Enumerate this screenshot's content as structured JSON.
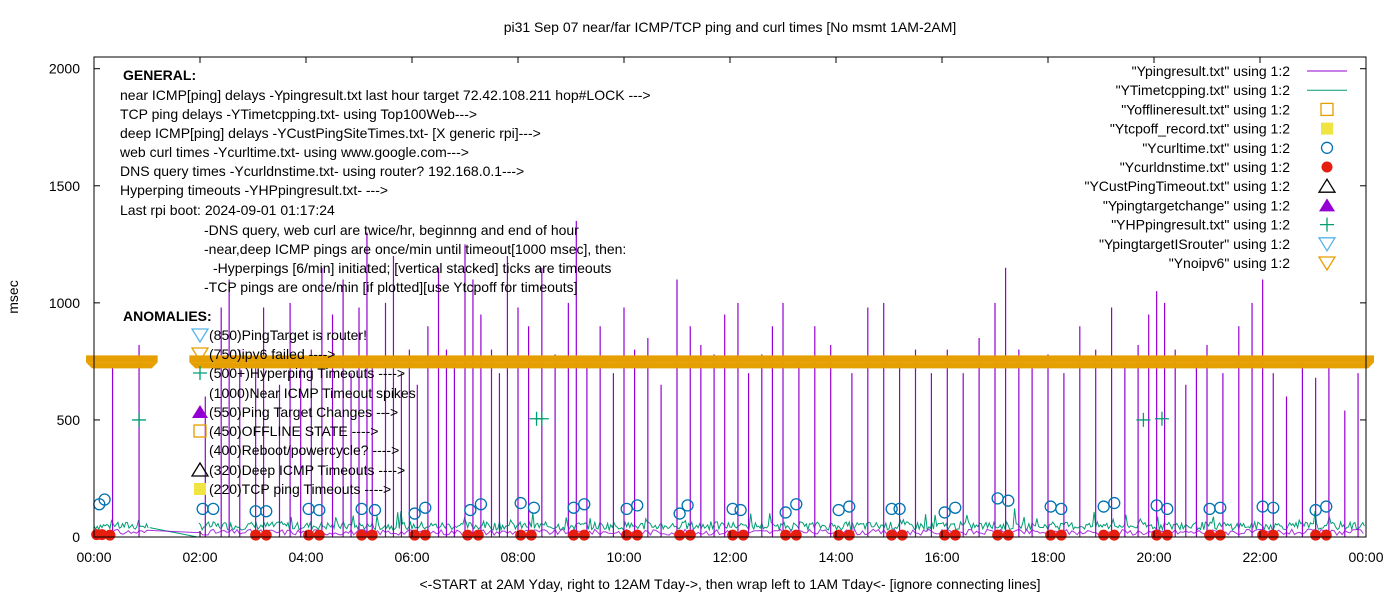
{
  "chart_data": {
    "type": "line",
    "title": "pi31 Sep 07  near/far ICMP/TCP ping and curl times [No msmt 1AM-2AM]",
    "xlabel": "<-START at 2AM Yday, right to 12AM Tday->, then wrap left to 1AM Tday<- [ignore connecting lines]",
    "ylabel": "msec",
    "xlim": [
      0,
      24
    ],
    "ylim": [
      0,
      2050
    ],
    "xticks": [
      "00:00",
      "02:00",
      "04:00",
      "06:00",
      "08:00",
      "10:00",
      "12:00",
      "14:00",
      "16:00",
      "18:00",
      "20:00",
      "22:00",
      "00:00"
    ],
    "yticks": [
      "0",
      "500",
      "1000",
      "1500",
      "2000"
    ],
    "grid": false,
    "legend_position": "top-right",
    "legend": [
      {
        "label": "\"Ypingresult.txt\" using 1:2",
        "marker": "line",
        "color": "#9400d3"
      },
      {
        "label": "\"YTimetcpping.txt\" using 1:2",
        "marker": "line",
        "color": "#009e73"
      },
      {
        "label": "\"Yofflineresult.txt\" using 1:2",
        "marker": "open-square",
        "color": "#e69f00"
      },
      {
        "label": "\"Ytcpoff_record.txt\" using 1:2",
        "marker": "filled-square",
        "color": "#f0e442"
      },
      {
        "label": "\"Ycurltime.txt\" using 1:2",
        "marker": "open-circle",
        "color": "#0072b2"
      },
      {
        "label": "\"Ycurldnstime.txt\" using 1:2",
        "marker": "filled-circle",
        "color": "#e51e10"
      },
      {
        "label": "\"YCustPingTimeout.txt\" using 1:2",
        "marker": "open-triangle",
        "color": "#000000"
      },
      {
        "label": "\"Ypingtargetchange\" using 1:2",
        "marker": "filled-triangle",
        "color": "#9400d3"
      },
      {
        "label": "\"YHPpingresult.txt\" using 1:2",
        "marker": "plus",
        "color": "#009e73"
      },
      {
        "label": "\"YpingtargetISrouter\" using 1:2",
        "marker": "open-down-triangle",
        "color": "#56b4e9"
      },
      {
        "label": "\"Ynoipv6\" using 1:2",
        "marker": "open-down-triangle",
        "color": "#e69f00"
      }
    ],
    "general_notes": [
      "GENERAL:",
      "near ICMP[ping] delays -Ypingresult.txt last hour target 72.42.108.211 hop#LOCK --->",
      "TCP ping delays -YTimetcpping.txt- using Top100Web--->",
      "deep ICMP[ping] delays -YCustPingSiteTimes.txt- [X generic rpi]--->",
      "web curl times -Ycurltime.txt- using www.google.com--->",
      "DNS query times -Ycurldnstime.txt- using router? 192.168.0.1--->",
      "Hyperping timeouts -YHPpingresult.txt- --->",
      "Last rpi boot: 2024-09-01 01:17:24",
      "-DNS query, web curl are twice/hr, beginnng and end of hour",
      "-near,deep ICMP pings are once/min until timeout[1000 msec], then:",
      "-Hyperpings [6/min] initiated; [vertical stacked] ticks are timeouts",
      "-TCP pings are once/min [if plotted][use Ytcpoff for timeouts]"
    ],
    "anomalies": [
      {
        "text": "ANOMALIES:",
        "marker": "none"
      },
      {
        "text": "(850)PingTarget is router!",
        "marker": "open-down-triangle",
        "color": "#56b4e9"
      },
      {
        "text": "(750)ipv6 failed ---->",
        "marker": "open-down-triangle",
        "color": "#e69f00"
      },
      {
        "text": "(500+)Hyperping Timeouts ---->",
        "marker": "plus",
        "color": "#009e73"
      },
      {
        "text": "(1000)Near ICMP Timeout spikes",
        "marker": "none"
      },
      {
        "text": "(550)Ping Target Changes --->",
        "marker": "filled-triangle",
        "color": "#9400d3"
      },
      {
        "text": "(450)OFFLINE STATE ---->",
        "marker": "open-square",
        "color": "#e69f00"
      },
      {
        "text": "(400)Reboot/powercycle? ---->",
        "marker": "none"
      },
      {
        "text": "(320)Deep ICMP Timeouts ---->",
        "marker": "open-triangle",
        "color": "#000000"
      },
      {
        "text": "(220)TCP ping Timeouts ---->",
        "marker": "filled-square",
        "color": "#f0e442"
      }
    ],
    "series": [
      {
        "name": "\"Ypingresult.txt\" using 1:2",
        "color": "#9400d3",
        "spikes": [
          [
            0.35,
            730
          ],
          [
            0.85,
            820
          ],
          [
            2.1,
            600
          ],
          [
            2.4,
            980
          ],
          [
            2.55,
            1100
          ],
          [
            2.75,
            800
          ],
          [
            3.05,
            720
          ],
          [
            3.2,
            980
          ],
          [
            3.5,
            650
          ],
          [
            3.7,
            1000
          ],
          [
            3.9,
            760
          ],
          [
            4.1,
            800
          ],
          [
            4.3,
            1150
          ],
          [
            4.5,
            950
          ],
          [
            4.7,
            1100
          ],
          [
            4.85,
            700
          ],
          [
            5.0,
            980
          ],
          [
            5.15,
            1300
          ],
          [
            5.25,
            750
          ],
          [
            5.5,
            1000
          ],
          [
            5.65,
            1200
          ],
          [
            5.8,
            700
          ],
          [
            5.95,
            800
          ],
          [
            6.1,
            650
          ],
          [
            6.3,
            900
          ],
          [
            6.5,
            1150
          ],
          [
            6.65,
            800
          ],
          [
            6.8,
            760
          ],
          [
            7.0,
            1250
          ],
          [
            7.15,
            1100
          ],
          [
            7.3,
            950
          ],
          [
            7.5,
            800
          ],
          [
            7.65,
            700
          ],
          [
            7.8,
            1200
          ],
          [
            8.0,
            980
          ],
          [
            8.2,
            900
          ],
          [
            8.45,
            1150
          ],
          [
            8.7,
            780
          ],
          [
            8.95,
            1000
          ],
          [
            9.1,
            1350
          ],
          [
            9.3,
            750
          ],
          [
            9.55,
            900
          ],
          [
            9.8,
            700
          ],
          [
            10.0,
            980
          ],
          [
            10.2,
            800
          ],
          [
            10.45,
            850
          ],
          [
            10.7,
            650
          ],
          [
            11.0,
            1100
          ],
          [
            11.25,
            900
          ],
          [
            11.45,
            820
          ],
          [
            11.7,
            780
          ],
          [
            11.9,
            950
          ],
          [
            12.15,
            1000
          ],
          [
            12.35,
            700
          ],
          [
            12.6,
            780
          ],
          [
            12.8,
            900
          ],
          [
            13.0,
            1000
          ],
          [
            13.3,
            750
          ],
          [
            13.6,
            900
          ],
          [
            13.9,
            820
          ],
          [
            14.3,
            700
          ],
          [
            14.6,
            980
          ],
          [
            14.9,
            1000
          ],
          [
            15.2,
            750
          ],
          [
            15.5,
            800
          ],
          [
            15.8,
            700
          ],
          [
            16.1,
            800
          ],
          [
            16.4,
            700
          ],
          [
            16.7,
            850
          ],
          [
            17.0,
            1000
          ],
          [
            17.2,
            1150
          ],
          [
            17.45,
            800
          ],
          [
            17.7,
            720
          ],
          [
            18.0,
            780
          ],
          [
            18.3,
            700
          ],
          [
            18.6,
            900
          ],
          [
            18.9,
            800
          ],
          [
            19.2,
            980
          ],
          [
            19.45,
            750
          ],
          [
            19.7,
            820
          ],
          [
            19.9,
            950
          ],
          [
            20.05,
            1050
          ],
          [
            20.2,
            1000
          ],
          [
            20.4,
            800
          ],
          [
            20.6,
            650
          ],
          [
            20.8,
            750
          ],
          [
            21.0,
            820
          ],
          [
            21.3,
            700
          ],
          [
            21.6,
            900
          ],
          [
            21.85,
            1000
          ],
          [
            22.05,
            1100
          ],
          [
            22.25,
            700
          ],
          [
            22.5,
            600
          ],
          [
            22.8,
            750
          ],
          [
            23.05,
            680
          ],
          [
            23.3,
            730
          ],
          [
            23.6,
            540
          ],
          [
            23.85,
            700
          ]
        ]
      },
      {
        "name": "\"YTimetcpping.txt\" using 1:2",
        "color": "#009e73",
        "baseline": 30,
        "note": "dense noisy band near 0-80 msec across the day, gap 01:00-02:00"
      },
      {
        "name": "\"Ycurltime.txt\" using 1:2",
        "color": "#0072b2",
        "points": [
          [
            0.1,
            140
          ],
          [
            0.2,
            160
          ],
          [
            2.05,
            120
          ],
          [
            2.25,
            120
          ],
          [
            3.05,
            110
          ],
          [
            3.25,
            110
          ],
          [
            4.05,
            120
          ],
          [
            4.25,
            115
          ],
          [
            5.05,
            120
          ],
          [
            5.3,
            115
          ],
          [
            6.05,
            100
          ],
          [
            6.25,
            125
          ],
          [
            7.1,
            115
          ],
          [
            7.3,
            140
          ],
          [
            8.05,
            145
          ],
          [
            8.3,
            125
          ],
          [
            9.05,
            125
          ],
          [
            9.25,
            140
          ],
          [
            10.05,
            120
          ],
          [
            10.25,
            135
          ],
          [
            11.05,
            100
          ],
          [
            11.2,
            135
          ],
          [
            12.05,
            120
          ],
          [
            12.2,
            115
          ],
          [
            13.05,
            105
          ],
          [
            13.25,
            140
          ],
          [
            14.05,
            115
          ],
          [
            14.25,
            130
          ],
          [
            15.05,
            120
          ],
          [
            15.2,
            120
          ],
          [
            16.05,
            105
          ],
          [
            16.25,
            125
          ],
          [
            17.05,
            165
          ],
          [
            17.25,
            155
          ],
          [
            18.05,
            130
          ],
          [
            18.25,
            120
          ],
          [
            19.05,
            130
          ],
          [
            19.25,
            145
          ],
          [
            20.05,
            135
          ],
          [
            20.25,
            120
          ],
          [
            21.05,
            120
          ],
          [
            21.25,
            125
          ],
          [
            22.05,
            130
          ],
          [
            22.25,
            125
          ],
          [
            23.05,
            115
          ],
          [
            23.25,
            130
          ]
        ]
      },
      {
        "name": "\"Ycurldnstime.txt\" using 1:2",
        "color": "#e51e10",
        "points": [
          [
            0.05,
            10
          ],
          [
            0.15,
            10
          ],
          [
            0.3,
            8
          ],
          [
            3.05,
            8
          ],
          [
            3.25,
            8
          ],
          [
            4.05,
            8
          ],
          [
            4.25,
            8
          ],
          [
            5.05,
            8
          ],
          [
            5.25,
            8
          ],
          [
            6.05,
            8
          ],
          [
            6.25,
            8
          ],
          [
            7.05,
            8
          ],
          [
            7.25,
            8
          ],
          [
            8.05,
            8
          ],
          [
            8.25,
            8
          ],
          [
            9.05,
            8
          ],
          [
            9.25,
            8
          ],
          [
            10.05,
            8
          ],
          [
            10.25,
            8
          ],
          [
            11.05,
            8
          ],
          [
            11.25,
            8
          ],
          [
            12.05,
            8
          ],
          [
            12.25,
            8
          ],
          [
            13.05,
            8
          ],
          [
            13.25,
            8
          ],
          [
            14.05,
            8
          ],
          [
            14.25,
            8
          ],
          [
            15.05,
            8
          ],
          [
            15.25,
            8
          ],
          [
            16.05,
            8
          ],
          [
            16.25,
            8
          ],
          [
            17.05,
            8
          ],
          [
            17.25,
            8
          ],
          [
            18.05,
            8
          ],
          [
            18.25,
            8
          ],
          [
            19.05,
            8
          ],
          [
            19.25,
            8
          ],
          [
            20.05,
            8
          ],
          [
            20.25,
            8
          ],
          [
            21.05,
            8
          ],
          [
            21.25,
            8
          ],
          [
            22.05,
            8
          ],
          [
            22.25,
            8
          ],
          [
            23.05,
            8
          ],
          [
            23.25,
            8
          ]
        ]
      },
      {
        "name": "\"YHPpingresult.txt\" using 1:2",
        "color": "#009e73",
        "points": [
          [
            0.85,
            500
          ],
          [
            8.35,
            505
          ],
          [
            8.45,
            505
          ],
          [
            19.8,
            500
          ],
          [
            20.15,
            505
          ]
        ]
      },
      {
        "name": "\"Ynoipv6\" using 1:2",
        "color": "#e69f00",
        "band": {
          "y": 750,
          "x_ranges": [
            [
              0,
              1.05
            ],
            [
              1.95,
              24
            ]
          ]
        }
      }
    ]
  }
}
